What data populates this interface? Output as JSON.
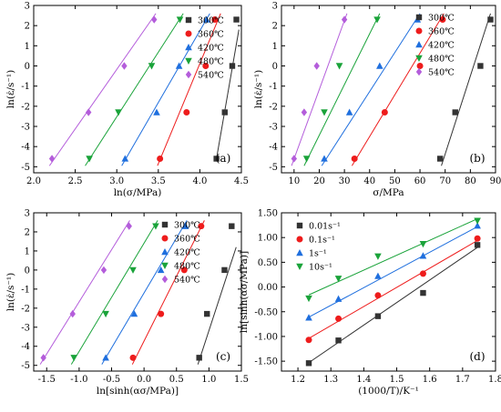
{
  "chart_data": [
    {
      "type": "scatter",
      "panel_label": "(a)",
      "xlabel": "ln(σ/MPa)",
      "ylabel": "ln(ε̇/s⁻¹)",
      "xlim": [
        2.0,
        4.5
      ],
      "ylim": [
        -5.3,
        3.0
      ],
      "xticks": [
        2.0,
        2.5,
        3.0,
        3.5,
        4.0,
        4.5
      ],
      "xticklabels": [
        "2.0",
        "2.5",
        "3.0",
        "3.5",
        "4.0",
        "4.5"
      ],
      "yticks": [
        -5,
        -4,
        -3,
        -2,
        -1,
        0,
        1,
        2,
        3
      ],
      "yticklabels": [
        "-5",
        "-4",
        "-3",
        "-2",
        "-1",
        "0",
        "1",
        "2",
        "3"
      ],
      "legend_position": "top-right",
      "series": [
        {
          "name": "300℃",
          "color": "#333333",
          "marker": "square",
          "x": [
            4.2,
            4.3,
            4.39,
            4.44
          ],
          "y": [
            -4.6,
            -2.3,
            0.0,
            2.3
          ],
          "fit": [
            [
              4.2,
              -4.6
            ],
            [
              4.47,
              1.8
            ]
          ]
        },
        {
          "name": "360℃",
          "color": "#ee1c1c",
          "marker": "circle",
          "x": [
            3.52,
            3.84,
            4.07,
            4.18
          ],
          "y": [
            -4.6,
            -2.3,
            0.0,
            2.3
          ],
          "fit": [
            [
              3.49,
              -4.95
            ],
            [
              4.25,
              2.6
            ]
          ]
        },
        {
          "name": "420℃",
          "color": "#1f6fde",
          "marker": "triangle-up",
          "x": [
            3.1,
            3.48,
            3.75,
            4.08
          ],
          "y": [
            -4.6,
            -2.3,
            0.0,
            2.3
          ],
          "fit": [
            [
              3.06,
              -4.95
            ],
            [
              4.12,
              2.6
            ]
          ]
        },
        {
          "name": "480℃",
          "color": "#1aa33a",
          "marker": "triangle-down",
          "x": [
            2.67,
            3.02,
            3.42,
            3.76
          ],
          "y": [
            -4.6,
            -2.3,
            0.0,
            2.3
          ],
          "fit": [
            [
              2.62,
              -4.95
            ],
            [
              3.8,
              2.6
            ]
          ]
        },
        {
          "name": "540℃",
          "color": "#b45ddb",
          "marker": "diamond",
          "x": [
            2.22,
            2.66,
            3.09,
            3.45
          ],
          "y": [
            -4.6,
            -2.3,
            0.0,
            2.3
          ],
          "fit": [
            [
              2.19,
              -4.95
            ],
            [
              3.47,
              2.6
            ]
          ]
        }
      ]
    },
    {
      "type": "scatter",
      "panel_label": "(b)",
      "xlabel": "σ/MPa",
      "ylabel": "ln(ε̇/s⁻¹)",
      "xlim": [
        5,
        90
      ],
      "ylim": [
        -5.3,
        3.0
      ],
      "xticks": [
        10,
        20,
        30,
        40,
        50,
        60,
        70,
        80,
        90
      ],
      "xticklabels": [
        "10",
        "20",
        "30",
        "40",
        "50",
        "60",
        "70",
        "80",
        "90"
      ],
      "yticks": [
        -5,
        -4,
        -3,
        -2,
        -1,
        0,
        1,
        2,
        3
      ],
      "yticklabels": [
        "-5",
        "-4",
        "-3",
        "-2",
        "-1",
        "0",
        "1",
        "2",
        "3"
      ],
      "legend_position": "top-right",
      "series": [
        {
          "name": "300℃",
          "color": "#333333",
          "marker": "square",
          "x": [
            68,
            74,
            84,
            88
          ],
          "y": [
            -4.6,
            -2.3,
            0.0,
            2.3
          ],
          "fit": [
            [
              68.5,
              -4.95
            ],
            [
              88,
              2.6
            ]
          ]
        },
        {
          "name": "360℃",
          "color": "#ee1c1c",
          "marker": "circle",
          "x": [
            34,
            46,
            60,
            69
          ],
          "y": [
            -4.6,
            -2.3,
            0.0,
            2.3
          ],
          "fit": [
            [
              33,
              -4.95
            ],
            [
              69.5,
              2.6
            ]
          ]
        },
        {
          "name": "420℃",
          "color": "#1f6fde",
          "marker": "triangle-up",
          "x": [
            22,
            32,
            44,
            59
          ],
          "y": [
            -4.6,
            -2.3,
            0.0,
            2.3
          ],
          "fit": [
            [
              21,
              -4.95
            ],
            [
              60,
              2.6
            ]
          ]
        },
        {
          "name": "480℃",
          "color": "#1aa33a",
          "marker": "triangle-down",
          "x": [
            15,
            22,
            28,
            43
          ],
          "y": [
            -4.6,
            -2.3,
            0.0,
            2.3
          ],
          "fit": [
            [
              14,
              -4.95
            ],
            [
              44,
              2.6
            ]
          ]
        },
        {
          "name": "540℃",
          "color": "#b45ddb",
          "marker": "diamond",
          "x": [
            10,
            14,
            19,
            30
          ],
          "y": [
            -4.6,
            -2.3,
            0.0,
            2.3
          ],
          "fit": [
            [
              9,
              -4.95
            ],
            [
              31,
              2.6
            ]
          ]
        }
      ]
    },
    {
      "type": "scatter",
      "panel_label": "(c)",
      "xlabel": "ln[sinh(ασ/MPa)]",
      "ylabel": "ln(ε̇/s⁻¹)",
      "xlim": [
        -1.7,
        1.5
      ],
      "ylim": [
        -5.3,
        3.0
      ],
      "xticks": [
        -1.5,
        -1.0,
        -0.5,
        0.0,
        0.5,
        1.0,
        1.5
      ],
      "xticklabels": [
        "-1.5",
        "-1.0",
        "-0.5",
        "0.0",
        "0.5",
        "1.0",
        "1.5"
      ],
      "yticks": [
        -5,
        -4,
        -3,
        -2,
        -1,
        0,
        1,
        2,
        3
      ],
      "yticklabels": [
        "-5",
        "-4",
        "-3",
        "-2",
        "-1",
        "0",
        "1",
        "2",
        "3"
      ],
      "legend_position": "top-left",
      "series": [
        {
          "name": "300℃",
          "color": "#333333",
          "marker": "square",
          "x": [
            0.85,
            0.97,
            1.24,
            1.35
          ],
          "y": [
            -4.6,
            -2.3,
            0.0,
            2.3
          ],
          "fit": [
            [
              0.83,
              -4.95
            ],
            [
              1.42,
              1.2
            ]
          ]
        },
        {
          "name": "360℃",
          "color": "#ee1c1c",
          "marker": "circle",
          "x": [
            -0.17,
            0.26,
            0.62,
            0.88
          ],
          "y": [
            -4.6,
            -2.3,
            0.0,
            2.3
          ],
          "fit": [
            [
              -0.18,
              -4.95
            ],
            [
              0.93,
              2.6
            ]
          ]
        },
        {
          "name": "420℃",
          "color": "#1f6fde",
          "marker": "triangle-up",
          "x": [
            -0.59,
            -0.15,
            0.26,
            0.64
          ],
          "y": [
            -4.6,
            -2.3,
            0.0,
            2.3
          ],
          "fit": [
            [
              -0.65,
              -4.95
            ],
            [
              0.66,
              2.6
            ]
          ]
        },
        {
          "name": "480℃",
          "color": "#1aa33a",
          "marker": "triangle-down",
          "x": [
            -1.08,
            -0.59,
            -0.17,
            0.18
          ],
          "y": [
            -4.6,
            -2.3,
            0.0,
            2.3
          ],
          "fit": [
            [
              -1.12,
              -4.95
            ],
            [
              0.21,
              2.6
            ]
          ]
        },
        {
          "name": "540℃",
          "color": "#b45ddb",
          "marker": "diamond",
          "x": [
            -1.55,
            -1.1,
            -0.62,
            -0.23
          ],
          "y": [
            -4.6,
            -2.3,
            0.0,
            2.3
          ],
          "fit": [
            [
              -1.6,
              -4.95
            ],
            [
              -0.22,
              2.6
            ]
          ]
        }
      ]
    },
    {
      "type": "scatter",
      "panel_label": "(d)",
      "xlabel": "(1000/T)/K⁻¹",
      "ylabel": "ln[sinh(ασ/MPa)]",
      "xlim": [
        1.15,
        1.8
      ],
      "ylim": [
        -1.7,
        1.5
      ],
      "xticks": [
        1.2,
        1.3,
        1.4,
        1.5,
        1.6,
        1.7,
        1.8
      ],
      "xticklabels": [
        "1.2",
        "1.3",
        "1.4",
        "1.5",
        "1.6",
        "1.7",
        "1.8"
      ],
      "yticks": [
        -1.5,
        -1.0,
        -0.5,
        0.0,
        0.5,
        1.0,
        1.5
      ],
      "yticklabels": [
        "-1.50",
        "-1.00",
        "-0.50",
        "0.00",
        "0.50",
        "1.00",
        "1.50"
      ],
      "legend_position": "top-left",
      "series": [
        {
          "name": "0.01s⁻¹",
          "color": "#333333",
          "marker": "square",
          "x": [
            1.233,
            1.323,
            1.443,
            1.58,
            1.745
          ],
          "y": [
            -1.54,
            -1.08,
            -0.59,
            -0.12,
            0.85
          ],
          "fit": [
            [
              1.233,
              -1.53
            ],
            [
              1.745,
              0.8
            ]
          ]
        },
        {
          "name": "0.1s⁻¹",
          "color": "#ee1c1c",
          "marker": "circle",
          "x": [
            1.233,
            1.323,
            1.443,
            1.58,
            1.745
          ],
          "y": [
            -1.07,
            -0.64,
            -0.17,
            0.27,
            0.98
          ],
          "fit": [
            [
              1.233,
              -1.04
            ],
            [
              1.745,
              0.94
            ]
          ]
        },
        {
          "name": "1s⁻¹",
          "color": "#1f6fde",
          "marker": "triangle-up",
          "x": [
            1.233,
            1.323,
            1.443,
            1.58,
            1.745
          ],
          "y": [
            -0.62,
            -0.24,
            0.22,
            0.63,
            1.24
          ],
          "fit": [
            [
              1.233,
              -0.61
            ],
            [
              1.745,
              1.22
            ]
          ]
        },
        {
          "name": "10s⁻¹",
          "color": "#1aa33a",
          "marker": "triangle-down",
          "x": [
            1.233,
            1.323,
            1.443,
            1.58,
            1.745
          ],
          "y": [
            -0.23,
            0.17,
            0.62,
            0.87,
            1.34
          ],
          "fit": [
            [
              1.233,
              -0.16
            ],
            [
              1.745,
              1.38
            ]
          ]
        }
      ]
    }
  ]
}
